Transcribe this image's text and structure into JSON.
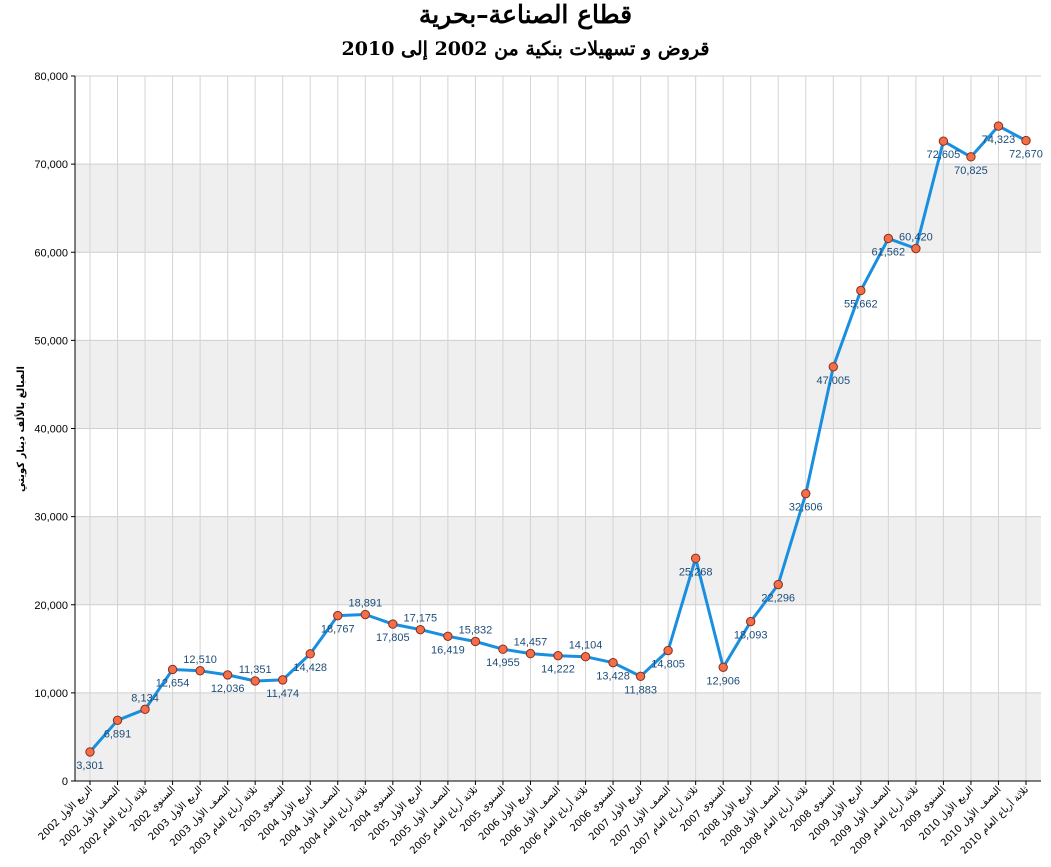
{
  "chart_data": {
    "type": "line",
    "title": "قطاع الصناعة–بحرية",
    "subtitle": "قروض و تسهيلات بنكية من 2002 إلى 2010",
    "xlabel": "",
    "ylabel": "المبالغ بالألف دينار كويتي",
    "ylim": [
      0,
      80000
    ],
    "yticks": [
      "0",
      "10,000",
      "20,000",
      "30,000",
      "40,000",
      "50,000",
      "60,000",
      "70,000",
      "80,000"
    ],
    "grid": true,
    "colors": {
      "line": "#1a8fe0",
      "marker": "#f26f4a",
      "marker_edge": "#8a2e1a",
      "band": "#efefef"
    },
    "categories": [
      "الربع الأول 2002",
      "النصف الأول 2002",
      "ثلاثة أرباع العام 2002",
      "السنوي 2002",
      "الربع الأول 2003",
      "النصف الأول 2003",
      "ثلاثة أرباع العام 2003",
      "السنوي 2003",
      "الربع الأول 2004",
      "النصف الأول 2004",
      "ثلاثة أرباع العام 2004",
      "السنوي 2004",
      "الربع الأول 2005",
      "النصف الأول 2005",
      "ثلاثة أرباع العام 2005",
      "السنوي 2005",
      "الربع الأول 2006",
      "النصف الأول 2006",
      "ثلاثة أرباع العام 2006",
      "السنوي 2006",
      "الربع الأول 2007",
      "النصف الأول 2007",
      "ثلاثة أرباع العام 2007",
      "السنوي 2007",
      "الربع الأول 2008",
      "النصف الأول 2008",
      "ثلاثة أرباع العام 2008",
      "السنوي 2008",
      "الربع الأول 2009",
      "النصف الأول 2009",
      "ثلاثة أرباع العام 2009",
      "السنوي 2009",
      "الربع الأول 2010",
      "النصف الأول 2010",
      "ثلاثة أرباع العام 2010"
    ],
    "values": [
      3301,
      6891,
      8134,
      12654,
      12510,
      12036,
      11351,
      11474,
      14428,
      18767,
      18891,
      17805,
      17175,
      16419,
      15832,
      14955,
      14457,
      14222,
      14104,
      13428,
      11883,
      14805,
      25268,
      12906,
      18093,
      22296,
      32606,
      47005,
      55662,
      61562,
      60420,
      72605,
      70825,
      74323,
      72670
    ],
    "value_labels": [
      "3,301",
      "6,891",
      "8,134",
      "12,654",
      "12,510",
      "12,036",
      "11,351",
      "11,474",
      "14,428",
      "18,767",
      "18,891",
      "17,805",
      "17,175",
      "16,419",
      "15,832",
      "14,955",
      "14,457",
      "14,222",
      "14,104",
      "13,428",
      "11,883",
      "14,805",
      "25,268",
      "12,906",
      "18,093",
      "22,296",
      "32,606",
      "47,005",
      "55,662",
      "61,562",
      "60,420",
      "72,605",
      "70,825",
      "74,323",
      "72,670"
    ],
    "label_side": [
      "b",
      "b",
      "a",
      "b",
      "a",
      "b",
      "a",
      "b",
      "b",
      "b",
      "a",
      "b",
      "a",
      "b",
      "a",
      "b",
      "a",
      "b",
      "a",
      "b",
      "b",
      "b",
      "b",
      "b",
      "b",
      "b",
      "b",
      "b",
      "b",
      "b",
      "a",
      "b",
      "b",
      "b",
      "b"
    ]
  }
}
